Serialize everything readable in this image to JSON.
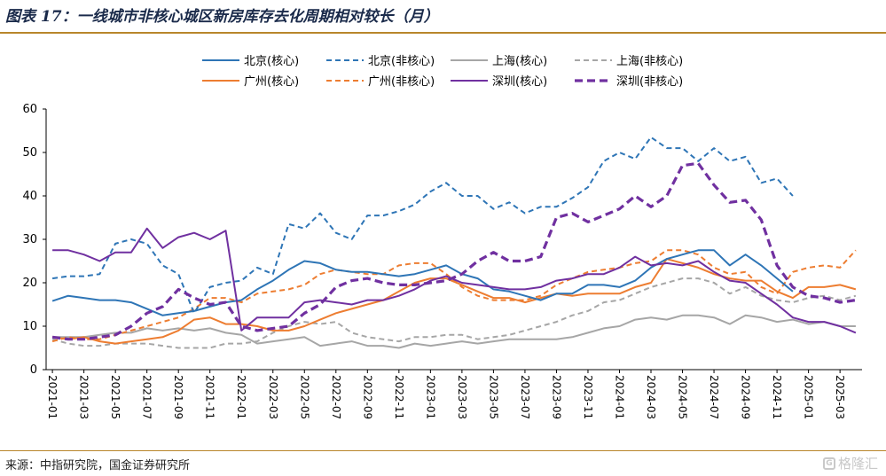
{
  "header": {
    "title": "图表 17：一线城市非核心城区新房库存去化周期相对较长（月）"
  },
  "footer": {
    "source": "来源：中指研究院，国金证券研究所",
    "watermark": "格隆汇"
  },
  "chart_data": {
    "type": "line",
    "ylim": [
      0,
      60
    ],
    "yticks": [
      0,
      10,
      20,
      30,
      40,
      50,
      60
    ],
    "grid": false,
    "legend_position": "top",
    "x": [
      "2021-01",
      "2021-02",
      "2021-03",
      "2021-04",
      "2021-05",
      "2021-06",
      "2021-07",
      "2021-08",
      "2021-09",
      "2021-10",
      "2021-11",
      "2021-12",
      "2022-01",
      "2022-02",
      "2022-03",
      "2022-04",
      "2022-05",
      "2022-06",
      "2022-07",
      "2022-08",
      "2022-09",
      "2022-10",
      "2022-11",
      "2022-12",
      "2023-01",
      "2023-02",
      "2023-03",
      "2023-04",
      "2023-05",
      "2023-06",
      "2023-07",
      "2023-08",
      "2023-09",
      "2023-10",
      "2023-11",
      "2023-12",
      "2024-01",
      "2024-02",
      "2024-03",
      "2024-04",
      "2024-05",
      "2024-06",
      "2024-07",
      "2024-08",
      "2024-09",
      "2024-10",
      "2024-11",
      "2024-12",
      "2025-01",
      "2025-02",
      "2025-03",
      "2025-04"
    ],
    "xtick_labels": [
      "2021-01",
      "2021-03",
      "2021-05",
      "2021-07",
      "2021-09",
      "2021-11",
      "2022-01",
      "2022-03",
      "2022-05",
      "2022-07",
      "2022-09",
      "2022-11",
      "2023-01",
      "2023-03",
      "2023-05",
      "2023-07",
      "2023-09",
      "2023-11",
      "2024-01",
      "2024-03",
      "2024-05",
      "2024-07",
      "2024-09",
      "2024-11",
      "2025-01",
      "2025-03"
    ],
    "series": [
      {
        "name": "北京(核心)",
        "color": "#2e75b6",
        "dash": "solid",
        "width": 2,
        "values": [
          15.8,
          17.0,
          16.5,
          16.0,
          16.0,
          15.5,
          14.0,
          12.5,
          13.0,
          13.5,
          14.5,
          15.5,
          16.0,
          18.5,
          20.5,
          23.0,
          25.0,
          24.5,
          23.0,
          22.5,
          22.5,
          22.0,
          21.5,
          22.0,
          23.0,
          24.0,
          22.0,
          21.0,
          18.5,
          18.0,
          17.0,
          16.0,
          17.5,
          17.5,
          19.5,
          19.5,
          19.0,
          20.5,
          23.5,
          25.5,
          26.5,
          27.5,
          27.5,
          24.0,
          26.5,
          24.0,
          21.0,
          18.0,
          null,
          null,
          null,
          null
        ]
      },
      {
        "name": "北京(非核心)",
        "color": "#2e75b6",
        "dash": "dash",
        "width": 2,
        "values": [
          21.0,
          21.5,
          21.5,
          22.0,
          29.0,
          30.0,
          29.0,
          24.0,
          22.0,
          13.0,
          19.0,
          20.0,
          20.5,
          23.5,
          22.0,
          33.5,
          32.5,
          36.0,
          31.5,
          30.0,
          35.5,
          35.5,
          36.5,
          38.0,
          41.0,
          43.0,
          40.0,
          40.0,
          37.0,
          38.5,
          36.0,
          37.5,
          37.5,
          39.5,
          42.0,
          48.0,
          50.0,
          48.5,
          53.5,
          51.0,
          51.0,
          48.0,
          51.0,
          48.0,
          49.0,
          43.0,
          44.0,
          40.0,
          null,
          null,
          null,
          null
        ]
      },
      {
        "name": "上海(核心)",
        "color": "#a6a6a6",
        "dash": "solid",
        "width": 2,
        "values": [
          7.5,
          7.5,
          7.5,
          8.0,
          8.5,
          8.5,
          9.5,
          9.0,
          9.5,
          9.0,
          9.5,
          8.5,
          8.0,
          6.0,
          6.5,
          7.0,
          7.5,
          5.5,
          6.0,
          6.5,
          5.5,
          5.5,
          5.0,
          6.0,
          5.5,
          6.0,
          6.5,
          6.0,
          6.5,
          7.0,
          7.0,
          7.0,
          7.0,
          7.5,
          8.5,
          9.5,
          10.0,
          11.5,
          12.0,
          11.5,
          12.5,
          12.5,
          12.0,
          10.5,
          12.5,
          12.0,
          11.0,
          11.5,
          10.5,
          11.0,
          10.0,
          10.0
        ]
      },
      {
        "name": "上海(非核心)",
        "color": "#a6a6a6",
        "dash": "dash",
        "width": 2,
        "values": [
          7.0,
          6.0,
          5.5,
          5.5,
          6.0,
          6.0,
          6.0,
          5.5,
          5.0,
          5.0,
          5.0,
          6.0,
          6.0,
          6.5,
          8.5,
          10.0,
          11.0,
          10.5,
          11.0,
          8.5,
          7.5,
          7.0,
          6.5,
          7.5,
          7.5,
          8.0,
          8.0,
          7.0,
          7.5,
          8.0,
          9.0,
          10.0,
          11.0,
          12.5,
          13.5,
          15.5,
          16.0,
          17.5,
          19.0,
          20.0,
          21.0,
          21.0,
          20.0,
          17.5,
          19.0,
          17.0,
          16.0,
          15.5,
          16.5,
          17.0,
          16.0,
          17.0
        ]
      },
      {
        "name": "广州(核心)",
        "color": "#ed7d31",
        "dash": "solid",
        "width": 2,
        "values": [
          7.5,
          7.0,
          7.5,
          6.5,
          6.0,
          6.5,
          7.0,
          7.5,
          9.0,
          11.5,
          12.0,
          10.5,
          10.5,
          10.0,
          9.0,
          9.0,
          10.0,
          11.5,
          13.0,
          14.0,
          15.0,
          16.0,
          18.0,
          20.0,
          21.0,
          21.0,
          19.5,
          18.0,
          16.5,
          16.5,
          15.5,
          16.5,
          17.5,
          17.0,
          17.5,
          17.5,
          17.5,
          19.0,
          20.0,
          25.5,
          24.5,
          23.5,
          22.0,
          21.0,
          20.5,
          20.5,
          18.0,
          16.5,
          19.0,
          19.0,
          19.5,
          18.5
        ]
      },
      {
        "name": "广州(非核心)",
        "color": "#ed7d31",
        "dash": "dash",
        "width": 2,
        "values": [
          6.5,
          7.5,
          7.0,
          7.0,
          8.0,
          9.0,
          10.0,
          11.0,
          12.0,
          14.0,
          16.5,
          16.5,
          15.5,
          17.5,
          18.0,
          18.5,
          19.5,
          22.0,
          23.0,
          22.5,
          22.0,
          22.0,
          24.0,
          24.5,
          24.5,
          22.0,
          19.0,
          17.0,
          16.0,
          16.0,
          16.0,
          17.0,
          19.5,
          21.0,
          22.5,
          23.0,
          23.5,
          24.5,
          25.0,
          27.5,
          27.5,
          26.5,
          23.5,
          22.0,
          22.5,
          19.0,
          17.5,
          22.5,
          23.5,
          24.0,
          23.5,
          27.5
        ]
      },
      {
        "name": "深圳(核心)",
        "color": "#7030a0",
        "dash": "solid",
        "width": 2,
        "values": [
          27.5,
          27.5,
          26.5,
          25.0,
          27.0,
          27.0,
          32.5,
          28.0,
          30.5,
          31.5,
          30.0,
          32.0,
          9.0,
          12.0,
          12.0,
          12.0,
          15.5,
          16.0,
          15.5,
          15.0,
          16.0,
          16.0,
          17.0,
          18.5,
          20.5,
          21.5,
          20.0,
          19.5,
          19.0,
          18.5,
          18.5,
          19.0,
          20.5,
          21.0,
          22.0,
          22.0,
          23.5,
          26.0,
          24.0,
          24.5,
          24.0,
          25.0,
          22.5,
          20.5,
          20.0,
          17.5,
          15.0,
          12.0,
          11.0,
          11.0,
          10.0,
          8.5
        ]
      },
      {
        "name": "深圳(非核心)",
        "color": "#7030a0",
        "dash": "dash",
        "width": 3.2,
        "values": [
          7.5,
          7.0,
          7.0,
          7.5,
          8.0,
          10.0,
          13.0,
          14.5,
          18.5,
          16.5,
          15.0,
          15.5,
          10.0,
          9.0,
          9.5,
          10.0,
          13.0,
          15.0,
          19.0,
          20.5,
          21.0,
          20.0,
          19.5,
          19.5,
          20.0,
          20.5,
          22.0,
          25.0,
          27.0,
          25.0,
          25.0,
          26.0,
          35.0,
          36.0,
          34.0,
          35.5,
          37.0,
          40.0,
          37.5,
          40.0,
          47.0,
          47.5,
          42.5,
          38.5,
          39.0,
          34.5,
          24.0,
          19.0,
          17.0,
          16.5,
          15.5,
          16.0
        ]
      }
    ]
  }
}
